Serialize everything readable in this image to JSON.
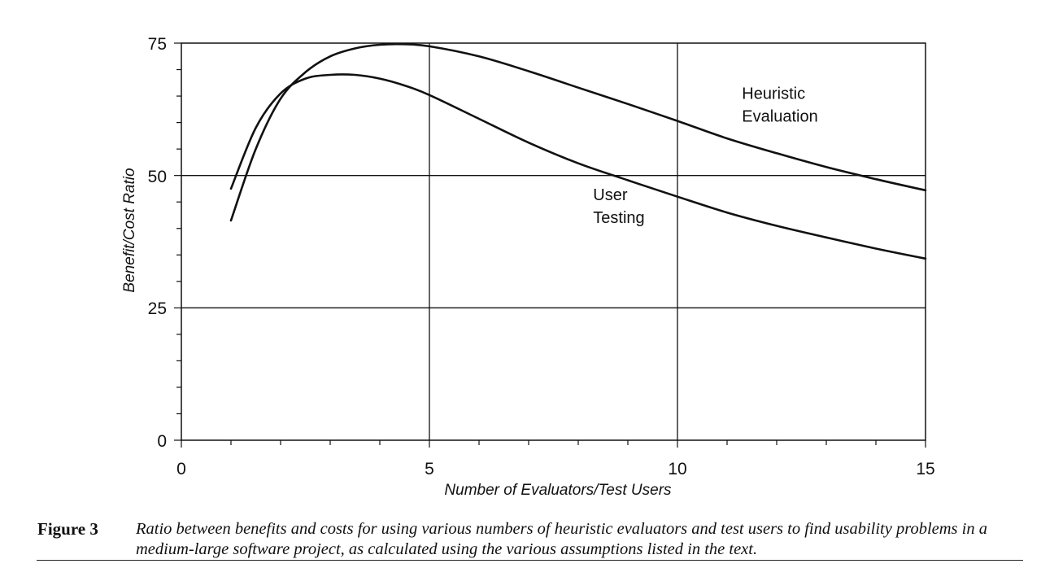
{
  "chart_data": {
    "type": "line",
    "title": "",
    "xlabel": "Number of Evaluators/Test Users",
    "ylabel": "Benefit/Cost Ratio",
    "xlim": [
      0,
      15
    ],
    "ylim": [
      0,
      75
    ],
    "x_ticks": [
      "0",
      "5",
      "10",
      "15"
    ],
    "y_ticks": [
      "0",
      "25",
      "50",
      "75"
    ],
    "grid": true,
    "series": [
      {
        "name": "Heuristic Evaluation",
        "label_lines": [
          "Heuristic",
          "Evaluation"
        ],
        "x": [
          1,
          1.5,
          2,
          2.5,
          3,
          3.5,
          4,
          4.5,
          5,
          6,
          7,
          8,
          9,
          10,
          11,
          12,
          13,
          14,
          15
        ],
        "y": [
          41.5,
          55,
          64.5,
          69.5,
          72.5,
          74,
          74.7,
          74.8,
          74.4,
          72.5,
          69.7,
          66.6,
          63.5,
          60.3,
          57,
          54.2,
          51.6,
          49.3,
          47.2
        ]
      },
      {
        "name": "User Testing",
        "label_lines": [
          "User",
          "Testing"
        ],
        "x": [
          1,
          1.5,
          2,
          2.5,
          3,
          3.5,
          4,
          4.5,
          5,
          6,
          7,
          8,
          9,
          10,
          11,
          12,
          13,
          14,
          15
        ],
        "y": [
          47.5,
          59,
          65.5,
          68.3,
          69,
          69,
          68.3,
          67,
          65.2,
          60.7,
          56.2,
          52.3,
          49.1,
          46,
          43,
          40.5,
          38.3,
          36.2,
          34.3
        ]
      }
    ]
  },
  "caption": {
    "label": "Figure 3",
    "text": "Ratio between benefits and costs for using various numbers of heuristic evaluators and test users to find usability problems in a medium-large software project, as calculated using the various assumptions listed in the text."
  }
}
